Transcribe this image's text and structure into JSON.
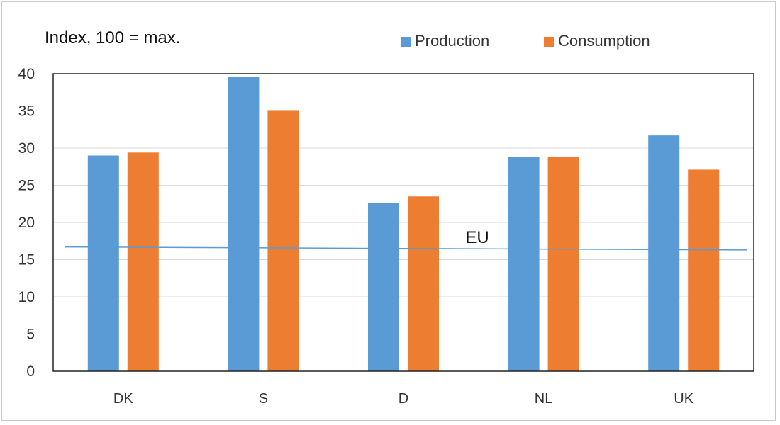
{
  "chart_data": {
    "type": "bar",
    "title": "Index, 100 = max.",
    "categories": [
      "DK",
      "S",
      "D",
      "NL",
      "UK"
    ],
    "series": [
      {
        "name": "Production",
        "color": "#5B9BD5",
        "values": [
          29.0,
          39.6,
          22.6,
          28.8,
          31.7
        ]
      },
      {
        "name": "Consumption",
        "color": "#ED7D31",
        "values": [
          29.4,
          35.1,
          23.5,
          28.8,
          27.1
        ]
      }
    ],
    "reference_line": {
      "label": "EU",
      "start_value": 16.7,
      "end_value": 16.3,
      "color": "#5B9BD5"
    },
    "ylim": [
      0,
      40
    ],
    "yticks": [
      "0",
      "5",
      "10",
      "15",
      "20",
      "25",
      "30",
      "35",
      "40"
    ],
    "grid": true,
    "legend_position": "top"
  }
}
